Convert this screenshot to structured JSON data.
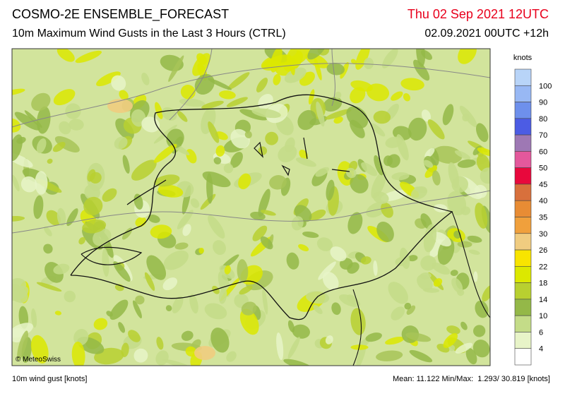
{
  "header": {
    "title": "COSMO-2E ENSEMBLE_FORECAST",
    "subtitle": "10m Maximum Wind Gusts in the Last 3 Hours (CTRL)",
    "valid_time": "Thu 02 Sep 2021 12UTC",
    "run_time": "02.09.2021 00UTC +12h"
  },
  "map": {
    "credit": "© MeteoSwiss"
  },
  "legend": {
    "unit": "knots",
    "colors": [
      "#b8d4f8",
      "#98b8f4",
      "#6e90ec",
      "#4c5ce4",
      "#9e78b4",
      "#e4589c",
      "#e8083c",
      "#d8703c",
      "#e88c34",
      "#f0a03c",
      "#f0cc80",
      "#f8e400",
      "#dce800",
      "#b8d030",
      "#94b848",
      "#c4dc88",
      "#e8f4c8",
      "#ffffff"
    ],
    "labels": [
      100,
      90,
      80,
      70,
      60,
      50,
      45,
      40,
      35,
      30,
      26,
      22,
      18,
      14,
      10,
      6,
      4
    ]
  },
  "footer": {
    "variable": "10m wind gust [knots]",
    "stats": "Mean: 11.122 Min/Max:  1.293/ 30.819 [knots]"
  }
}
